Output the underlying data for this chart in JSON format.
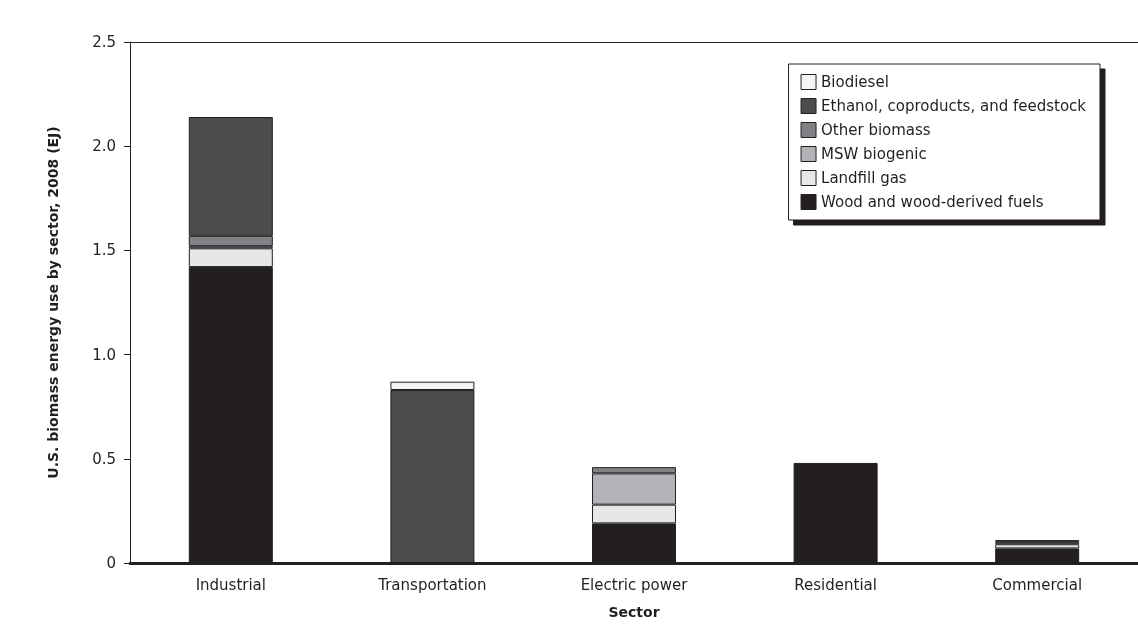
{
  "chart_data": {
    "type": "bar",
    "stacked": true,
    "xlabel": "Sector",
    "ylabel": "U.S. biomass energy use by sector, 2008 (EJ)",
    "categories": [
      "Industrial",
      "Transportation",
      "Electric power",
      "Residential",
      "Commercial"
    ],
    "series": [
      {
        "name": "Wood and wood-derived fuels",
        "color": "#231f20",
        "values": [
          1.42,
          0,
          0.19,
          0.48,
          0.07
        ]
      },
      {
        "name": "Landfill gas",
        "color": "#e6e7e8",
        "values": [
          0.09,
          0,
          0.09,
          0,
          0.02
        ]
      },
      {
        "name": "MSW biogenic",
        "color": "#b1b3b6",
        "values": [
          0.01,
          0,
          0.15,
          0,
          0.01
        ]
      },
      {
        "name": "Other biomass",
        "color": "#808285",
        "values": [
          0.05,
          0,
          0.03,
          0,
          0.01
        ]
      },
      {
        "name": "Ethanol, coproducts, and feedstock",
        "color": "#4d4b4c",
        "values": [
          0.57,
          0.83,
          0,
          0,
          0
        ]
      },
      {
        "name": "Biodiesel",
        "color": "#f4f4f4",
        "values": [
          0,
          0.04,
          0,
          0,
          0
        ]
      }
    ],
    "ylim": [
      0,
      2.5
    ],
    "yticks": [
      0,
      0.5,
      {
        "value": 1,
        "label": "1.0"
      },
      1.5,
      {
        "value": 2,
        "label": "2.0"
      },
      2.5
    ],
    "grid": false,
    "legend": "top right"
  }
}
